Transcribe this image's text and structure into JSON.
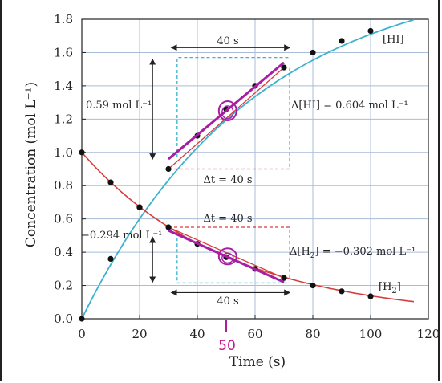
{
  "chart_data": {
    "type": "line",
    "xlabel": "Time (s)",
    "ylabel": "Concentration (mol L⁻¹)",
    "xlim": [
      0,
      120
    ],
    "ylim": [
      0,
      1.8
    ],
    "x_ticks": [
      "0",
      "20",
      "40",
      "60",
      "80",
      "100",
      "120"
    ],
    "y_ticks": [
      "0.0",
      "0.2",
      "0.4",
      "0.6",
      "0.8",
      "1.0",
      "1.2",
      "1.4",
      "1.6",
      "1.8"
    ],
    "grid": true,
    "series": [
      {
        "name": "[HI]",
        "color": "#3bb3cf",
        "x": [
          0,
          10,
          20,
          30,
          40,
          50,
          60,
          70,
          80,
          90,
          100
        ],
        "y": [
          0.0,
          0.36,
          0.67,
          0.9,
          1.1,
          1.26,
          1.4,
          1.51,
          1.6,
          1.67,
          1.73
        ]
      },
      {
        "name": "[H₂]",
        "color": "#d63c3c",
        "x": [
          0,
          10,
          20,
          30,
          40,
          50,
          60,
          70,
          80,
          90,
          100
        ],
        "y": [
          1.0,
          0.82,
          0.67,
          0.55,
          0.45,
          0.37,
          0.3,
          0.245,
          0.2,
          0.165,
          0.135
        ]
      }
    ],
    "annotations": {
      "hi_series_label": "[HI]",
      "h2_series_label": "[H",
      "h2_series_label_sub": "2",
      "h2_series_label_end": "]",
      "interval_top": "40 s",
      "interval_bottom": "40 s",
      "dt_top": "Δt = 40 s",
      "dt_bottom": "Δt = 40 s",
      "hi_vertical_change": "0.59 mol L⁻¹",
      "delta_hi": "Δ[HI] = 0.604 mol L⁻¹",
      "h2_vertical_change": "−0.294 mol L⁻¹",
      "delta_h2_prefix": "Δ[H",
      "delta_h2_sub": "2",
      "delta_h2_suffix": "] = −0.302 mol L⁻¹",
      "handwritten_time": "50"
    }
  }
}
